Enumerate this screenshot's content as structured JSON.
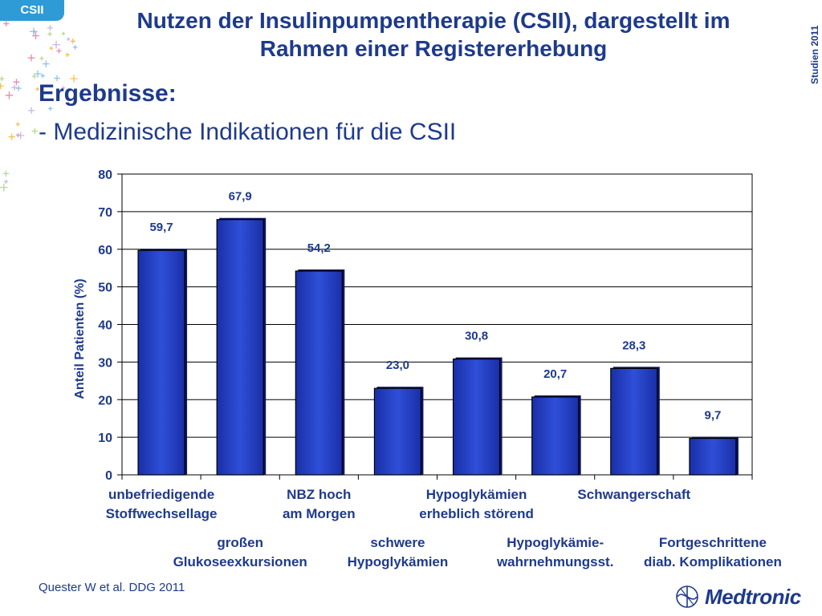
{
  "tag": "CSII",
  "side_label": "Studien 2011",
  "title_line1": "Nutzen der Insulinpumpentherapie (CSII), dargestellt im",
  "title_line2": "Rahmen einer Registererhebung",
  "section_heading": "Ergebnisse:",
  "section_subline": "- Medizinische Indikationen für die CSII",
  "footer_source": "Quester W et al. DDG 2011",
  "logo_text": "Medtronic",
  "colors": {
    "bar": "#2f4fd8",
    "title": "#1e3a8c",
    "tag": "#2e9bd6"
  },
  "chart_data": {
    "type": "bar",
    "ylabel": "Anteil Patienten (%)",
    "ylim": [
      0,
      80
    ],
    "yticks": [
      0,
      10,
      20,
      30,
      40,
      50,
      60,
      70,
      80
    ],
    "grid": true,
    "value_labels": [
      "59,7",
      "67,9",
      "54,2",
      "23,0",
      "30,8",
      "20,7",
      "28,3",
      "9,7"
    ],
    "values": [
      59.7,
      67.9,
      54.2,
      23.0,
      30.8,
      20.7,
      28.3,
      9.7
    ],
    "categories": [
      [
        "unbefriedigende",
        "Stoffwechsellage"
      ],
      [
        "großen",
        "Glukoseexkursionen"
      ],
      [
        "NBZ hoch",
        "am Morgen"
      ],
      [
        "schwere",
        "Hypoglykämien"
      ],
      [
        "Hypoglykämien",
        "erheblich störend"
      ],
      [
        "Hypoglykämie-",
        "wahrnehmungsst."
      ],
      [
        "Schwangerschaft"
      ],
      [
        "Fortgeschrittene",
        "diab. Komplikationen"
      ]
    ]
  }
}
